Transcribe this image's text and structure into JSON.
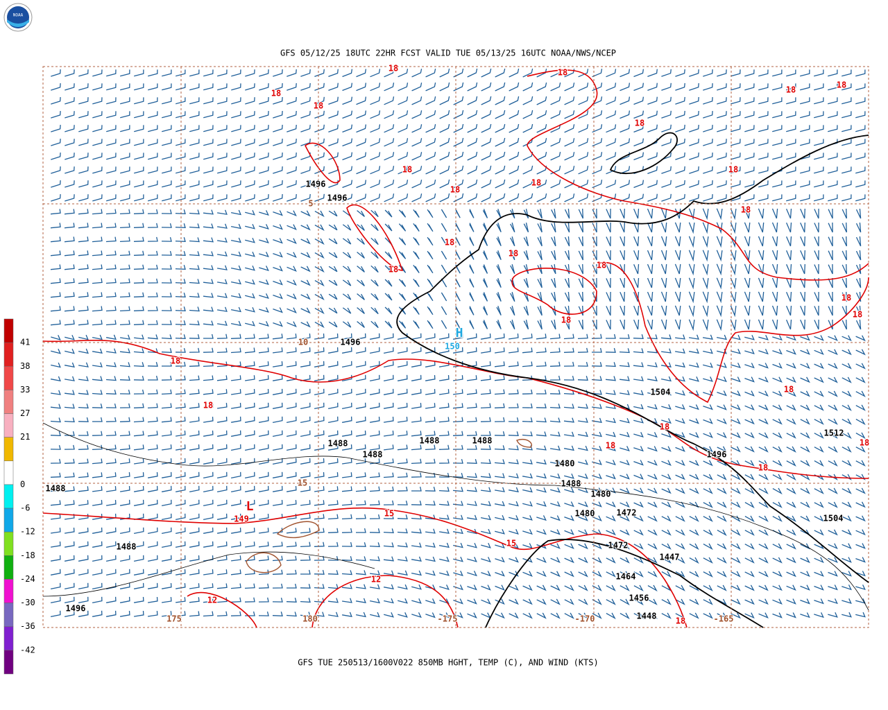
{
  "header": {
    "title": "GFS 05/12/25 18UTC 22HR FCST VALID TUE 05/13/25 16UTC NOAA/NWS/NCEP",
    "logo": "NOAA"
  },
  "footer": "GFS TUE 250513/1600V022 850MB HGHT, TEMP (C), AND WIND (KTS)",
  "colorbar": {
    "labels": [
      41,
      38,
      33,
      27,
      21,
      0,
      -6,
      -12,
      -18,
      -24,
      -30,
      -36,
      -42
    ],
    "colors": [
      "#c00000",
      "#e02020",
      "#f04848",
      "#f08080",
      "#f8b0c0",
      "#f0b800",
      "#ffffff",
      "#00f0f0",
      "#10a8e8",
      "#80e020",
      "#10b010",
      "#f010d0",
      "#7868c0",
      "#8020d0",
      "#700080"
    ]
  },
  "map": {
    "labels": [
      {
        "text": "18",
        "color": "#e00000"
      },
      {
        "text": "18",
        "color": "#e00000"
      },
      {
        "text": "18",
        "color": "#e00000"
      },
      {
        "text": "18",
        "color": "#e00000"
      },
      {
        "text": "18",
        "color": "#e00000"
      },
      {
        "text": "18",
        "color": "#e00000"
      },
      {
        "text": "18",
        "color": "#e00000"
      },
      {
        "text": "18",
        "color": "#e00000"
      },
      {
        "text": "18",
        "color": "#e00000"
      },
      {
        "text": "18",
        "color": "#e00000"
      },
      {
        "text": "18",
        "color": "#e00000"
      },
      {
        "text": "18",
        "color": "#e00000"
      },
      {
        "text": "18",
        "color": "#e00000"
      },
      {
        "text": "18",
        "color": "#e00000"
      },
      {
        "text": "18",
        "color": "#e00000"
      },
      {
        "text": "18",
        "color": "#e00000"
      },
      {
        "text": "18",
        "color": "#e00000"
      },
      {
        "text": "18",
        "color": "#e00000"
      },
      {
        "text": "18",
        "color": "#e00000"
      },
      {
        "text": "18",
        "color": "#e00000"
      },
      {
        "text": "18",
        "color": "#e00000"
      },
      {
        "text": "18",
        "color": "#e00000"
      },
      {
        "text": "18",
        "color": "#e00000"
      },
      {
        "text": "18",
        "color": "#e00000"
      },
      {
        "text": "18",
        "color": "#e00000"
      },
      {
        "text": "18",
        "color": "#e00000"
      },
      {
        "text": "18",
        "color": "#e00000"
      },
      {
        "text": "15",
        "color": "#e00000"
      },
      {
        "text": "15",
        "color": "#e00000"
      },
      {
        "text": "149",
        "color": "#e00000"
      },
      {
        "text": "12",
        "color": "#e00000"
      },
      {
        "text": "12",
        "color": "#e00000"
      },
      {
        "text": "L",
        "color": "#e00000"
      },
      {
        "text": "1496",
        "color": "#000000"
      },
      {
        "text": "1496",
        "color": "#000000"
      },
      {
        "text": "1496",
        "color": "#000000"
      },
      {
        "text": "1504",
        "color": "#000000"
      },
      {
        "text": "1504",
        "color": "#000000"
      },
      {
        "text": "1512",
        "color": "#000000"
      },
      {
        "text": "1488",
        "color": "#000000"
      },
      {
        "text": "1488",
        "color": "#000000"
      },
      {
        "text": "1488",
        "color": "#000000"
      },
      {
        "text": "1488",
        "color": "#000000"
      },
      {
        "text": "1488",
        "color": "#000000"
      },
      {
        "text": "1488",
        "color": "#000000"
      },
      {
        "text": "1488",
        "color": "#000000"
      },
      {
        "text": "1496",
        "color": "#000000"
      },
      {
        "text": "1496",
        "color": "#000000"
      },
      {
        "text": "1480",
        "color": "#000000"
      },
      {
        "text": "1480",
        "color": "#000000"
      },
      {
        "text": "1480",
        "color": "#000000"
      },
      {
        "text": "1472",
        "color": "#000000"
      },
      {
        "text": "1472",
        "color": "#000000"
      },
      {
        "text": "1464",
        "color": "#000000"
      },
      {
        "text": "1456",
        "color": "#000000"
      },
      {
        "text": "1448",
        "color": "#000000"
      },
      {
        "text": "1447",
        "color": "#000000"
      },
      {
        "text": "H",
        "color": "#1fa8e0"
      },
      {
        "text": "150",
        "color": "#1fa8e0"
      },
      {
        "text": "5",
        "color": "#a0522d"
      },
      {
        "text": "10",
        "color": "#a0522d"
      },
      {
        "text": "15",
        "color": "#a0522d"
      },
      {
        "text": "175",
        "color": "#a0522d"
      },
      {
        "text": "180",
        "color": "#a0522d"
      },
      {
        "text": "-175",
        "color": "#a0522d"
      },
      {
        "text": "-170",
        "color": "#a0522d"
      },
      {
        "text": "-165",
        "color": "#a0522d"
      }
    ]
  }
}
